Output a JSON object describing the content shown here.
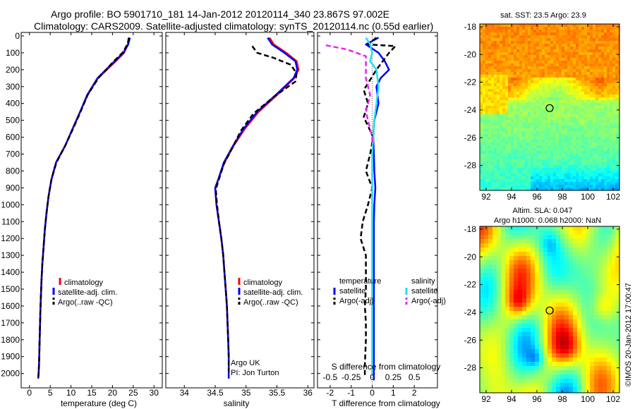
{
  "header": {
    "title_line1": "Argo profile: BO 5901710_181 14-Jan-2012 20120114_340 23.867S 97.002E",
    "title_line2": "Climatology: CARS2009. Satellite-adjusted climatology: synTS_20120114.nc (0.55d earlier)"
  },
  "depth_ticks": [
    "0",
    "100",
    "200",
    "300",
    "400",
    "500",
    "600",
    "700",
    "800",
    "900",
    "1000",
    "1100",
    "1200",
    "1300",
    "1400",
    "1500",
    "1600",
    "1700",
    "1800",
    "1900",
    "2000"
  ],
  "colors": {
    "climatology": "#ff0000",
    "satellite": "#0000ff",
    "argo": "#000000",
    "salinity_satellite": "#22ddee",
    "salinity_argo": "#ee22ee",
    "map_circle": "#000000"
  },
  "chart_data": [
    {
      "type": "line",
      "name": "temperature-profile",
      "xlabel": "temperature (deg C)",
      "xlim": [
        -2,
        32
      ],
      "ylim": [
        2060,
        0
      ],
      "x_ticks": [
        "0",
        "5",
        "10",
        "15",
        "20",
        "25",
        "30"
      ],
      "legend": [
        "climatology",
        "satellite-adj. clim.",
        "Argo(..raw -QC)"
      ],
      "legend_placement": "lower-middle",
      "series": [
        {
          "name": "climatology",
          "style": "solid",
          "x": [
            23.9,
            23.7,
            22.8,
            20.8,
            16.5,
            14.0,
            12.2,
            10.4,
            8.6,
            6.4,
            5.3,
            4.6,
            4.1,
            3.7,
            3.4,
            3.1,
            2.9,
            2.75,
            2.6,
            2.5,
            2.4,
            2.3,
            2.2,
            2.1
          ],
          "y": [
            10,
            50,
            100,
            150,
            250,
            350,
            450,
            550,
            650,
            750,
            850,
            950,
            1050,
            1150,
            1250,
            1350,
            1450,
            1550,
            1650,
            1750,
            1850,
            1950,
            2000,
            2030
          ]
        },
        {
          "name": "satellite-adj. clim.",
          "style": "solid",
          "x": [
            24.2,
            23.8,
            22.6,
            20.5,
            16.4,
            13.9,
            12.2,
            10.4,
            8.6,
            6.4,
            5.3,
            4.6,
            4.1,
            3.7,
            3.4,
            3.1,
            2.9,
            2.75,
            2.6,
            2.5,
            2.4,
            2.3,
            2.2,
            2.1
          ],
          "y": [
            10,
            50,
            100,
            150,
            250,
            350,
            450,
            550,
            650,
            750,
            850,
            950,
            1050,
            1150,
            1250,
            1350,
            1450,
            1550,
            1650,
            1750,
            1850,
            1950,
            2000,
            2030
          ]
        },
        {
          "name": "Argo(..raw -QC)",
          "style": "dash",
          "x": [
            24.0,
            23.6,
            22.4,
            20.3,
            16.6,
            14.0,
            12.3,
            10.5,
            8.6,
            6.5,
            5.3,
            4.6,
            4.1,
            3.7,
            3.4,
            3.1,
            2.9,
            2.75,
            2.6,
            2.5,
            2.4,
            2.3,
            2.2,
            2.15
          ],
          "y": [
            10,
            50,
            100,
            150,
            250,
            350,
            450,
            550,
            650,
            750,
            850,
            950,
            1050,
            1150,
            1250,
            1350,
            1450,
            1550,
            1650,
            1750,
            1850,
            1950,
            2000,
            2020
          ]
        }
      ]
    },
    {
      "type": "line",
      "name": "salinity-profile",
      "xlabel": "salinity",
      "xlim": [
        33.7,
        36.1
      ],
      "ylim": [
        2060,
        0
      ],
      "x_ticks": [
        "34",
        "34.5",
        "35",
        "35.5",
        "36"
      ],
      "legend": [
        "climatology",
        "satellite-adj. clim.",
        "Argo(..raw -QC)"
      ],
      "legend_placement": "lower-middle",
      "annotation": [
        "Argo UK",
        "PI: Jon Turton"
      ],
      "series": [
        {
          "name": "climatology",
          "style": "solid",
          "x": [
            35.38,
            35.45,
            35.65,
            35.82,
            35.85,
            35.78,
            35.5,
            35.2,
            34.98,
            34.8,
            34.65,
            34.55,
            34.5,
            34.52,
            34.56,
            34.6,
            34.63,
            34.65,
            34.67,
            34.69,
            34.7,
            34.71,
            34.72,
            34.72,
            34.72
          ],
          "y": [
            10,
            50,
            100,
            150,
            200,
            250,
            350,
            450,
            550,
            650,
            750,
            850,
            900,
            1000,
            1100,
            1200,
            1300,
            1400,
            1500,
            1600,
            1700,
            1800,
            1900,
            2000,
            2030
          ]
        },
        {
          "name": "satellite-adj. clim.",
          "style": "solid",
          "x": [
            35.35,
            35.42,
            35.62,
            35.8,
            35.83,
            35.77,
            35.48,
            35.18,
            34.96,
            34.79,
            34.64,
            34.55,
            34.5,
            34.52,
            34.56,
            34.6,
            34.63,
            34.65,
            34.67,
            34.69,
            34.7,
            34.71,
            34.72,
            34.72,
            34.72
          ],
          "y": [
            10,
            50,
            100,
            150,
            200,
            250,
            350,
            450,
            550,
            650,
            750,
            850,
            900,
            1000,
            1100,
            1200,
            1300,
            1400,
            1500,
            1600,
            1700,
            1800,
            1900,
            2000,
            2030
          ]
        },
        {
          "name": "Argo(..raw -QC)",
          "style": "dash",
          "x": [
            35.1,
            35.18,
            35.45,
            35.72,
            35.82,
            35.8,
            35.45,
            35.12,
            34.92,
            34.78,
            34.64,
            34.55,
            34.51,
            34.53,
            34.56,
            34.6,
            34.63,
            34.65,
            34.67,
            34.69,
            34.7,
            34.71,
            34.72,
            34.72
          ],
          "y": [
            60,
            100,
            130,
            170,
            220,
            270,
            360,
            460,
            560,
            660,
            760,
            860,
            910,
            1000,
            1100,
            1200,
            1300,
            1400,
            1500,
            1600,
            1700,
            1800,
            1900,
            1990
          ]
        }
      ]
    },
    {
      "type": "line",
      "name": "difference-profile",
      "xlabel": "T difference from climatology",
      "xlabel_top": "S difference from climatology",
      "xlim": [
        -2.6,
        3.1
      ],
      "ylim": [
        2060,
        0
      ],
      "x_ticks_T": [
        {
          "v": -2,
          "label": "-2"
        },
        {
          "v": -1,
          "label": "-1"
        },
        {
          "v": 0,
          "label": "0"
        },
        {
          "v": 1,
          "label": "1"
        },
        {
          "v": 2,
          "label": "2"
        }
      ],
      "x_ticks_S": [
        {
          "v": -2,
          "label": "-0.5"
        },
        {
          "v": -1,
          "label": "-0.25"
        },
        {
          "v": 0,
          "label": "0"
        },
        {
          "v": 1,
          "label": "0.25"
        },
        {
          "v": 2,
          "label": "0.5"
        }
      ],
      "legend_groups": [
        {
          "heading": "temperature",
          "items": [
            "satellite",
            "Argo(-adj)"
          ]
        },
        {
          "heading": "salinity",
          "items": [
            "satellite",
            "Argo(-adj)"
          ]
        }
      ],
      "legend_placement": "lower-middle",
      "series": [
        {
          "name": "temperature satellite",
          "style": "solid",
          "color_key": "satellite",
          "x": [
            0.3,
            -0.3,
            0.3,
            0.6,
            0.8,
            0.4,
            0.2,
            0.3,
            0.1,
            0.05,
            0.08,
            0.1,
            0.15,
            0.1,
            0.08,
            0.08,
            0.08,
            0.08,
            0.08,
            0.08,
            0.08,
            0.08,
            0.08
          ],
          "y": [
            10,
            50,
            100,
            150,
            200,
            250,
            300,
            400,
            500,
            600,
            700,
            800,
            900,
            1000,
            1100,
            1200,
            1400,
            1600,
            1800,
            1900,
            2000,
            2020,
            2040
          ]
        },
        {
          "name": "temperature Argo(-adj)",
          "style": "dash",
          "color_key": "argo",
          "x": [
            0.2,
            -0.2,
            1.1,
            0.8,
            0.2,
            -0.4,
            -0.2,
            -0.4,
            0.05,
            -0.1,
            -0.3,
            0.0,
            -0.2,
            -0.45,
            -0.55,
            -0.3,
            -0.3,
            -0.3,
            -0.35,
            -0.3,
            -0.3,
            -0.35,
            -0.35
          ],
          "y": [
            10,
            50,
            60,
            100,
            200,
            320,
            400,
            480,
            600,
            700,
            800,
            900,
            1000,
            1100,
            1200,
            1300,
            1400,
            1500,
            1600,
            1700,
            1800,
            1950,
            2020
          ]
        },
        {
          "name": "salinity satellite",
          "style": "solid",
          "color_key": "salinity_satellite",
          "x": [
            -0.3,
            -0.1,
            0.0,
            -0.1,
            0.2,
            0.3,
            0.2,
            0.1,
            0.05,
            0.0,
            0.0,
            0.0,
            0.0,
            0.0,
            0.0,
            0.0,
            0.0,
            0.0,
            0.0
          ],
          "y": [
            10,
            50,
            100,
            150,
            200,
            300,
            400,
            500,
            600,
            700,
            800,
            900,
            1000,
            1200,
            1400,
            1600,
            1800,
            1950,
            2000
          ]
        },
        {
          "name": "salinity Argo(-adj)",
          "style": "dash",
          "color_key": "salinity_argo",
          "x": [
            -2.2,
            -1.2,
            -0.3,
            -0.3,
            -0.1,
            -0.3,
            -0.2,
            -0.1,
            0.0,
            0.0
          ],
          "y": [
            55,
            80,
            120,
            250,
            350,
            450,
            500,
            550,
            600,
            650
          ]
        }
      ]
    },
    {
      "type": "heatmap",
      "name": "sst-map",
      "title": "sat. SST: 23.5 Argo: 23.9",
      "xlim": [
        91.5,
        102.5
      ],
      "ylim": [
        -29.8,
        -17.8
      ],
      "x_ticks": [
        "92",
        "94",
        "96",
        "98",
        "100",
        "102"
      ],
      "y_ticks": [
        "-18",
        "-20",
        "-22",
        "-24",
        "-26",
        "-28"
      ],
      "argo_position": {
        "lon": 97.0,
        "lat": -23.867
      },
      "colormap": "jet"
    },
    {
      "type": "heatmap",
      "name": "sla-map",
      "title_line1": "Altim. SLA: 0.047",
      "title_line2": "Argo h1000: 0.068 h2000: NaN",
      "xlim": [
        91.5,
        102.5
      ],
      "ylim": [
        -29.8,
        -17.8
      ],
      "x_ticks": [
        "92",
        "94",
        "96",
        "98",
        "100",
        "102"
      ],
      "y_ticks": [
        "-18",
        "-20",
        "-22",
        "-24",
        "-26",
        "-28"
      ],
      "argo_position": {
        "lon": 97.0,
        "lat": -23.867
      },
      "colormap": "jet",
      "credit": "©IMOS 20-Jan-2012 17:00:47"
    }
  ]
}
